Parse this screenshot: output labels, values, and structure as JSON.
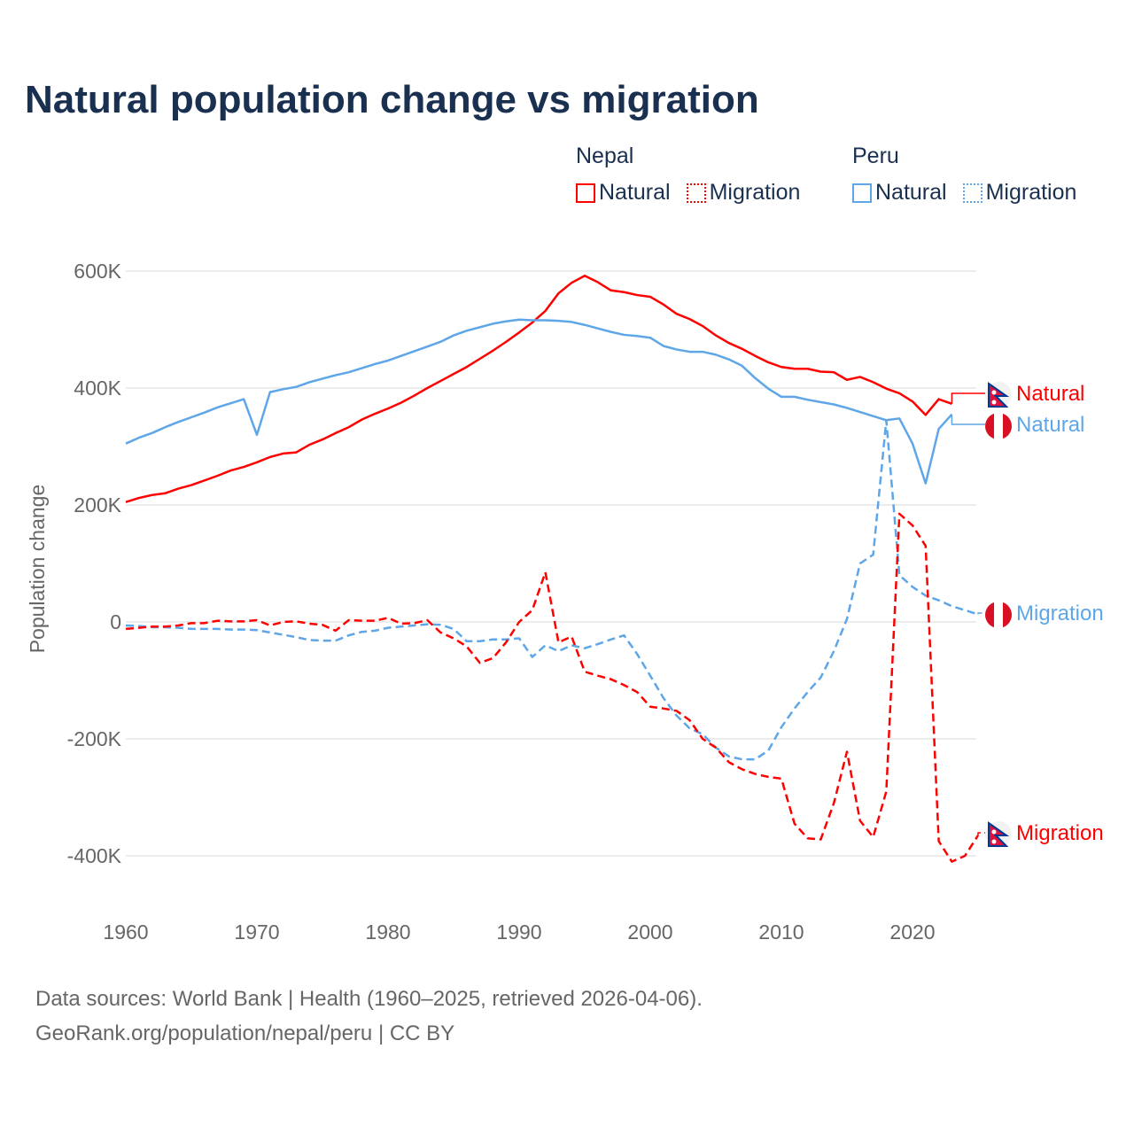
{
  "title": "Natural population change vs migration",
  "legend": {
    "groups": [
      {
        "name": "Nepal",
        "items": [
          "Natural",
          "Migration"
        ],
        "color": "#ff0000"
      },
      {
        "name": "Peru",
        "items": [
          "Natural",
          "Migration"
        ],
        "color": "#5ea6e8"
      }
    ]
  },
  "footer": {
    "line1": "Data sources: World Bank | Health (1960–2025, retrieved 2026-04-06).",
    "line2": "GeoRank.org/population/nepal/peru | CC BY"
  },
  "chart_data": {
    "type": "line",
    "title": "Natural population change vs migration",
    "xlabel": "",
    "ylabel": "Population change",
    "xlim": [
      1960,
      2025
    ],
    "ylim": [
      -500000,
      650000
    ],
    "x_ticks": [
      1960,
      1970,
      1980,
      1990,
      2000,
      2010,
      2020
    ],
    "x_tick_labels": [
      "1960",
      "1970",
      "1980",
      "1990",
      "2000",
      "2010",
      "2020"
    ],
    "y_ticks": [
      -400000,
      -200000,
      0,
      200000,
      400000,
      600000
    ],
    "y_tick_labels": [
      "-400K",
      "-200K",
      "0",
      "200K",
      "400K",
      "600K"
    ],
    "grid": true,
    "legend_position": "top-right",
    "x_start": 1960,
    "series": [
      {
        "name": "Nepal Natural",
        "end_label": "Natural",
        "country": "nepal",
        "color": "#ff0000",
        "dash": false,
        "values_k": [
          205,
          212,
          217,
          220,
          228,
          234,
          242,
          250,
          259,
          265,
          273,
          282,
          288,
          290,
          303,
          312,
          323,
          333,
          346,
          356,
          365,
          375,
          387,
          400,
          412,
          424,
          436,
          450,
          464,
          479,
          495,
          512,
          532,
          562,
          580,
          592,
          581,
          567,
          564,
          559,
          556,
          543,
          527,
          518,
          506,
          490,
          477,
          467,
          455,
          444,
          436,
          433,
          433,
          428,
          427,
          414,
          419,
          410,
          399,
          391,
          377,
          354,
          381,
          373
        ]
      },
      {
        "name": "Peru Natural",
        "end_label": "Natural",
        "country": "peru",
        "color": "#5ea6e8",
        "dash": false,
        "values_k": [
          305,
          315,
          323,
          333,
          342,
          350,
          358,
          367,
          374,
          381,
          320,
          393,
          398,
          402,
          410,
          416,
          422,
          427,
          434,
          441,
          447,
          455,
          463,
          471,
          479,
          490,
          498,
          504,
          510,
          514,
          517,
          516,
          516,
          515,
          513,
          508,
          502,
          496,
          491,
          489,
          486,
          472,
          466,
          462,
          462,
          457,
          449,
          438,
          417,
          399,
          385,
          385,
          380,
          376,
          372,
          366,
          359,
          352,
          345,
          348,
          305,
          237,
          330,
          355
        ]
      },
      {
        "name": "Peru Migration",
        "end_label": "Migration",
        "country": "peru",
        "color": "#5ea6e8",
        "dash": true,
        "values_k": [
          -6,
          -7,
          -9,
          -9,
          -10,
          -12,
          -12,
          -12,
          -13,
          -13,
          -14,
          -18,
          -22,
          -26,
          -31,
          -32,
          -32,
          -23,
          -17,
          -15,
          -10,
          -8,
          -6,
          -4,
          -5,
          -12,
          -33,
          -33,
          -30,
          -30,
          -28,
          -60,
          -40,
          -50,
          -40,
          -45,
          -38,
          -30,
          -23,
          -55,
          -92,
          -130,
          -160,
          -182,
          -192,
          -215,
          -230,
          -235,
          -235,
          -220,
          -180,
          -148,
          -120,
          -95,
          -50,
          5,
          100,
          115,
          345,
          80,
          60,
          45,
          37,
          27,
          20,
          13
        ]
      },
      {
        "name": "Nepal Migration",
        "end_label": "Migration",
        "country": "nepal",
        "color": "#ff0000",
        "dash": true,
        "values_k": [
          -12,
          -10,
          -8,
          -8,
          -6,
          -2,
          -2,
          2,
          1,
          1,
          3,
          -6,
          0,
          1,
          -3,
          -5,
          -15,
          3,
          2,
          2,
          7,
          -3,
          -2,
          3,
          -18,
          -28,
          -42,
          -70,
          -62,
          -35,
          0,
          20,
          85,
          -35,
          -25,
          -85,
          -92,
          -98,
          -108,
          -120,
          -145,
          -148,
          -152,
          -168,
          -200,
          -215,
          -240,
          -252,
          -260,
          -265,
          -268,
          -345,
          -370,
          -372,
          -310,
          -222,
          -340,
          -368,
          -290,
          185,
          165,
          130,
          -375,
          -410,
          -400,
          -365
        ]
      }
    ]
  }
}
